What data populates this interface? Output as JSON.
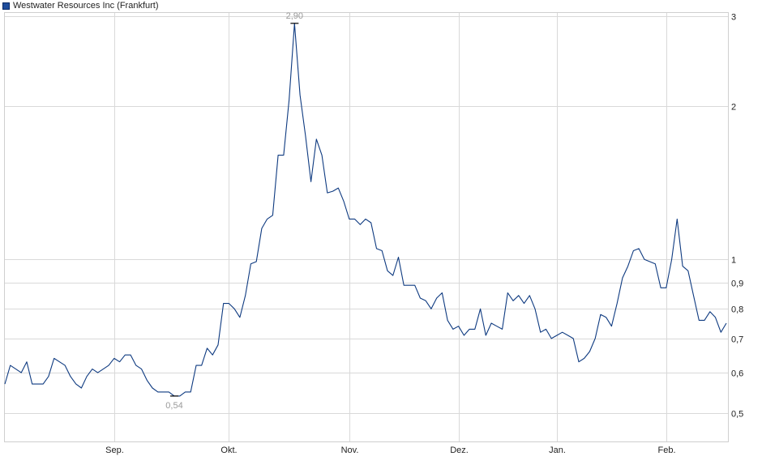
{
  "chart_data": {
    "type": "line",
    "legend": {
      "label": "Westwater Resources Inc (Frankfurt)",
      "placement": "top-left"
    },
    "y_scale": "log",
    "ylim": [
      0.44,
      3.05
    ],
    "y_ticks": [
      {
        "value": 3,
        "label": "3"
      },
      {
        "value": 2,
        "label": "2"
      },
      {
        "value": 1,
        "label": "1"
      },
      {
        "value": 0.9,
        "label": "0,9"
      },
      {
        "value": 0.8,
        "label": "0,8"
      },
      {
        "value": 0.7,
        "label": "0,7"
      },
      {
        "value": 0.6,
        "label": "0,6"
      },
      {
        "value": 0.5,
        "label": "0,5"
      }
    ],
    "x_ticks": [
      {
        "index": 20,
        "label": "Sep."
      },
      {
        "index": 41,
        "label": "Okt."
      },
      {
        "index": 63,
        "label": "Nov."
      },
      {
        "index": 83,
        "label": "Dez."
      },
      {
        "index": 101,
        "label": "Jan."
      },
      {
        "index": 121,
        "label": "Feb."
      }
    ],
    "grid": true,
    "colors": {
      "line": "#0e3a80",
      "grid": "#d9d9d9",
      "swatch": "#1f4e9c",
      "annotation": "#9a9a9a"
    },
    "series": [
      {
        "name": "Westwater Resources Inc (Frankfurt)",
        "values": [
          0.57,
          0.62,
          0.61,
          0.6,
          0.63,
          0.57,
          0.57,
          0.57,
          0.59,
          0.64,
          0.63,
          0.62,
          0.59,
          0.57,
          0.56,
          0.59,
          0.61,
          0.6,
          0.61,
          0.62,
          0.64,
          0.63,
          0.65,
          0.65,
          0.62,
          0.61,
          0.58,
          0.56,
          0.55,
          0.55,
          0.55,
          0.54,
          0.54,
          0.55,
          0.55,
          0.62,
          0.62,
          0.67,
          0.65,
          0.68,
          0.82,
          0.82,
          0.8,
          0.77,
          0.85,
          0.98,
          0.99,
          1.15,
          1.2,
          1.22,
          1.6,
          1.6,
          2.05,
          2.9,
          2.1,
          1.75,
          1.42,
          1.72,
          1.6,
          1.35,
          1.36,
          1.38,
          1.3,
          1.2,
          1.2,
          1.17,
          1.2,
          1.18,
          1.05,
          1.04,
          0.95,
          0.93,
          1.01,
          0.89,
          0.89,
          0.89,
          0.84,
          0.83,
          0.8,
          0.84,
          0.86,
          0.76,
          0.73,
          0.74,
          0.71,
          0.73,
          0.73,
          0.8,
          0.71,
          0.75,
          0.74,
          0.73,
          0.86,
          0.83,
          0.85,
          0.82,
          0.85,
          0.8,
          0.72,
          0.73,
          0.7,
          0.71,
          0.72,
          0.71,
          0.7,
          0.63,
          0.64,
          0.66,
          0.7,
          0.78,
          0.77,
          0.74,
          0.82,
          0.92,
          0.97,
          1.04,
          1.05,
          1.0,
          0.99,
          0.98,
          0.88,
          0.88,
          1.0,
          1.2,
          0.97,
          0.95,
          0.85,
          0.76,
          0.76,
          0.79,
          0.77,
          0.72,
          0.75
        ]
      }
    ],
    "annotations": [
      {
        "type": "max",
        "index": 53,
        "value": 2.9,
        "label": "2,90"
      },
      {
        "type": "min",
        "index": 31,
        "value": 0.54,
        "label": "0,54"
      }
    ]
  }
}
